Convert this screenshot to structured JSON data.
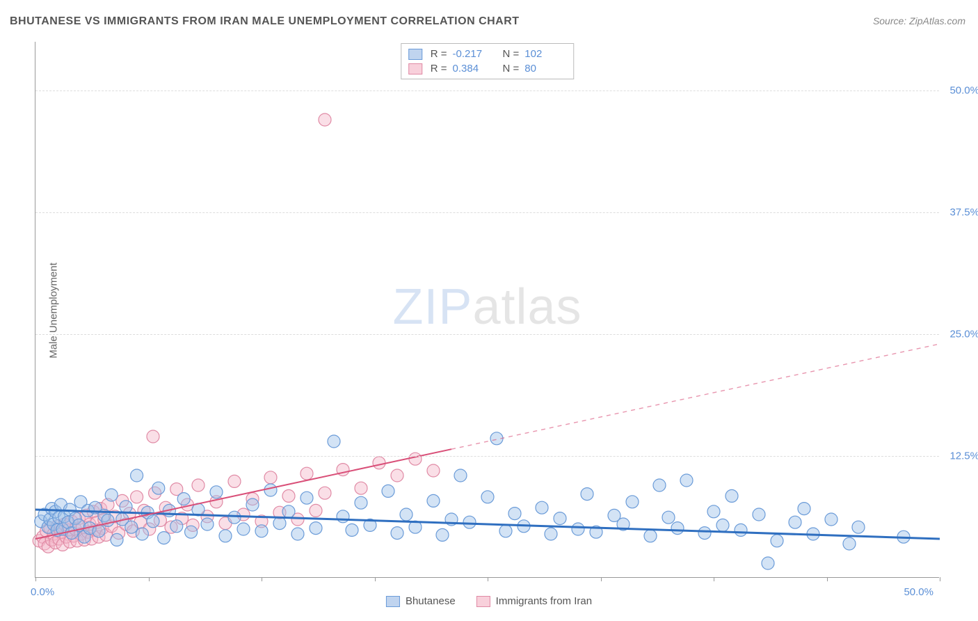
{
  "title": "BHUTANESE VS IMMIGRANTS FROM IRAN MALE UNEMPLOYMENT CORRELATION CHART",
  "source": "Source: ZipAtlas.com",
  "y_axis_label": "Male Unemployment",
  "watermark_a": "ZIP",
  "watermark_b": "atlas",
  "chart": {
    "type": "scatter",
    "xlim": [
      0,
      50
    ],
    "ylim": [
      0,
      55
    ],
    "x_tick_step": 6.25,
    "y_ticks": [
      12.5,
      25.0,
      37.5,
      50.0
    ],
    "y_tick_labels": [
      "12.5%",
      "25.0%",
      "37.5%",
      "50.0%"
    ],
    "x_min_label": "0.0%",
    "x_max_label": "50.0%",
    "background_color": "#ffffff",
    "grid_color": "#dddddd",
    "marker_radius": 9,
    "marker_opacity": 0.45,
    "series": {
      "bhutanese": {
        "label": "Bhutanese",
        "color_fill": "#9ec0e8",
        "color_stroke": "#6a9bd8",
        "R": "-0.217",
        "N": "102",
        "trend": {
          "x1": 0,
          "y1": 7.0,
          "x2": 50,
          "y2": 4.0,
          "solid_to_x": 50,
          "color": "#2f6fc0",
          "width": 3
        },
        "points": [
          [
            0.3,
            5.8
          ],
          [
            0.5,
            6.5
          ],
          [
            0.7,
            5.2
          ],
          [
            0.8,
            6.0
          ],
          [
            0.9,
            7.1
          ],
          [
            1.0,
            5.5
          ],
          [
            1.1,
            6.8
          ],
          [
            1.2,
            4.9
          ],
          [
            1.3,
            6.2
          ],
          [
            1.4,
            7.5
          ],
          [
            1.5,
            5.0
          ],
          [
            1.6,
            6.3
          ],
          [
            1.8,
            5.7
          ],
          [
            1.9,
            7.0
          ],
          [
            2.0,
            4.6
          ],
          [
            2.2,
            6.1
          ],
          [
            2.4,
            5.4
          ],
          [
            2.5,
            7.8
          ],
          [
            2.7,
            4.2
          ],
          [
            2.9,
            6.9
          ],
          [
            3.0,
            5.1
          ],
          [
            3.3,
            7.2
          ],
          [
            3.5,
            4.8
          ],
          [
            3.8,
            6.4
          ],
          [
            4.0,
            5.9
          ],
          [
            4.2,
            8.5
          ],
          [
            4.5,
            3.9
          ],
          [
            4.8,
            6.0
          ],
          [
            5.0,
            7.3
          ],
          [
            5.3,
            5.2
          ],
          [
            5.6,
            10.5
          ],
          [
            5.9,
            4.5
          ],
          [
            6.2,
            6.7
          ],
          [
            6.5,
            5.8
          ],
          [
            6.8,
            9.2
          ],
          [
            7.1,
            4.1
          ],
          [
            7.4,
            6.9
          ],
          [
            7.8,
            5.3
          ],
          [
            8.2,
            8.1
          ],
          [
            8.6,
            4.7
          ],
          [
            9.0,
            7.0
          ],
          [
            9.5,
            5.5
          ],
          [
            10.0,
            8.8
          ],
          [
            10.5,
            4.3
          ],
          [
            11.0,
            6.2
          ],
          [
            11.5,
            5.0
          ],
          [
            12.0,
            7.5
          ],
          [
            12.5,
            4.8
          ],
          [
            13.0,
            9.0
          ],
          [
            13.5,
            5.6
          ],
          [
            14.0,
            6.8
          ],
          [
            14.5,
            4.5
          ],
          [
            15.0,
            8.2
          ],
          [
            15.5,
            5.1
          ],
          [
            16.5,
            14.0
          ],
          [
            17.0,
            6.3
          ],
          [
            17.5,
            4.9
          ],
          [
            18.0,
            7.7
          ],
          [
            18.5,
            5.4
          ],
          [
            19.5,
            8.9
          ],
          [
            20.0,
            4.6
          ],
          [
            20.5,
            6.5
          ],
          [
            21.0,
            5.2
          ],
          [
            22.0,
            7.9
          ],
          [
            22.5,
            4.4
          ],
          [
            23.0,
            6.0
          ],
          [
            23.5,
            10.5
          ],
          [
            24.0,
            5.7
          ],
          [
            25.0,
            8.3
          ],
          [
            25.5,
            14.3
          ],
          [
            26.0,
            4.8
          ],
          [
            26.5,
            6.6
          ],
          [
            27.0,
            5.3
          ],
          [
            28.0,
            7.2
          ],
          [
            28.5,
            4.5
          ],
          [
            29.0,
            6.1
          ],
          [
            30.0,
            5.0
          ],
          [
            30.5,
            8.6
          ],
          [
            31.0,
            4.7
          ],
          [
            32.0,
            6.4
          ],
          [
            32.5,
            5.5
          ],
          [
            33.0,
            7.8
          ],
          [
            34.0,
            4.3
          ],
          [
            34.5,
            9.5
          ],
          [
            35.0,
            6.2
          ],
          [
            35.5,
            5.1
          ],
          [
            36.0,
            10.0
          ],
          [
            37.0,
            4.6
          ],
          [
            37.5,
            6.8
          ],
          [
            38.0,
            5.4
          ],
          [
            38.5,
            8.4
          ],
          [
            39.0,
            4.9
          ],
          [
            40.0,
            6.5
          ],
          [
            41.0,
            3.8
          ],
          [
            42.0,
            5.7
          ],
          [
            42.5,
            7.1
          ],
          [
            43.0,
            4.5
          ],
          [
            44.0,
            6.0
          ],
          [
            45.0,
            3.5
          ],
          [
            45.5,
            5.2
          ],
          [
            48.0,
            4.2
          ],
          [
            40.5,
            1.5
          ]
        ]
      },
      "iran": {
        "label": "Immigrants from Iran",
        "color_fill": "#f4b8c9",
        "color_stroke": "#e08aa5",
        "R": "0.384",
        "N": "80",
        "trend": {
          "x1": 0,
          "y1": 4.0,
          "x2": 50,
          "y2": 24.0,
          "solid_to_x": 23,
          "color": "#d94f78",
          "width": 2
        },
        "points": [
          [
            0.2,
            3.8
          ],
          [
            0.4,
            4.2
          ],
          [
            0.5,
            3.5
          ],
          [
            0.6,
            4.8
          ],
          [
            0.7,
            3.2
          ],
          [
            0.8,
            5.1
          ],
          [
            0.9,
            3.9
          ],
          [
            1.0,
            4.5
          ],
          [
            1.1,
            3.6
          ],
          [
            1.2,
            5.3
          ],
          [
            1.3,
            4.0
          ],
          [
            1.4,
            4.7
          ],
          [
            1.5,
            3.4
          ],
          [
            1.6,
            5.5
          ],
          [
            1.7,
            4.2
          ],
          [
            1.8,
            4.9
          ],
          [
            1.9,
            3.7
          ],
          [
            2.0,
            5.8
          ],
          [
            2.1,
            4.3
          ],
          [
            2.2,
            5.0
          ],
          [
            2.3,
            3.8
          ],
          [
            2.4,
            6.1
          ],
          [
            2.5,
            4.5
          ],
          [
            2.6,
            5.2
          ],
          [
            2.7,
            3.9
          ],
          [
            2.8,
            6.4
          ],
          [
            2.9,
            4.7
          ],
          [
            3.0,
            5.5
          ],
          [
            3.1,
            4.0
          ],
          [
            3.2,
            6.8
          ],
          [
            3.3,
            4.9
          ],
          [
            3.4,
            5.7
          ],
          [
            3.5,
            4.2
          ],
          [
            3.6,
            7.1
          ],
          [
            3.7,
            5.1
          ],
          [
            3.8,
            6.0
          ],
          [
            3.9,
            4.4
          ],
          [
            4.0,
            7.5
          ],
          [
            4.2,
            5.3
          ],
          [
            4.4,
            6.3
          ],
          [
            4.6,
            4.6
          ],
          [
            4.8,
            7.9
          ],
          [
            5.0,
            5.5
          ],
          [
            5.2,
            6.6
          ],
          [
            5.4,
            4.8
          ],
          [
            5.6,
            8.3
          ],
          [
            5.8,
            5.7
          ],
          [
            6.0,
            6.9
          ],
          [
            6.3,
            5.0
          ],
          [
            6.6,
            8.7
          ],
          [
            6.9,
            5.9
          ],
          [
            7.2,
            7.2
          ],
          [
            7.5,
            5.2
          ],
          [
            7.8,
            9.1
          ],
          [
            6.5,
            14.5
          ],
          [
            8.1,
            6.1
          ],
          [
            8.4,
            7.5
          ],
          [
            8.7,
            5.4
          ],
          [
            9.0,
            9.5
          ],
          [
            9.5,
            6.3
          ],
          [
            10.0,
            7.8
          ],
          [
            10.5,
            5.6
          ],
          [
            11.0,
            9.9
          ],
          [
            11.5,
            6.5
          ],
          [
            12.0,
            8.1
          ],
          [
            12.5,
            5.8
          ],
          [
            13.0,
            10.3
          ],
          [
            13.5,
            6.7
          ],
          [
            14.0,
            8.4
          ],
          [
            14.5,
            6.0
          ],
          [
            15.0,
            10.7
          ],
          [
            15.5,
            6.9
          ],
          [
            16.0,
            8.7
          ],
          [
            17.0,
            11.1
          ],
          [
            18.0,
            9.2
          ],
          [
            19.0,
            11.8
          ],
          [
            20.0,
            10.5
          ],
          [
            21.0,
            12.2
          ],
          [
            22.0,
            11.0
          ],
          [
            16.0,
            47.0
          ]
        ]
      }
    }
  },
  "legend_top": {
    "r_label": "R =",
    "n_label": "N ="
  },
  "colors": {
    "axis_text": "#5b8fd6",
    "title_text": "#555555",
    "source_text": "#888888"
  }
}
